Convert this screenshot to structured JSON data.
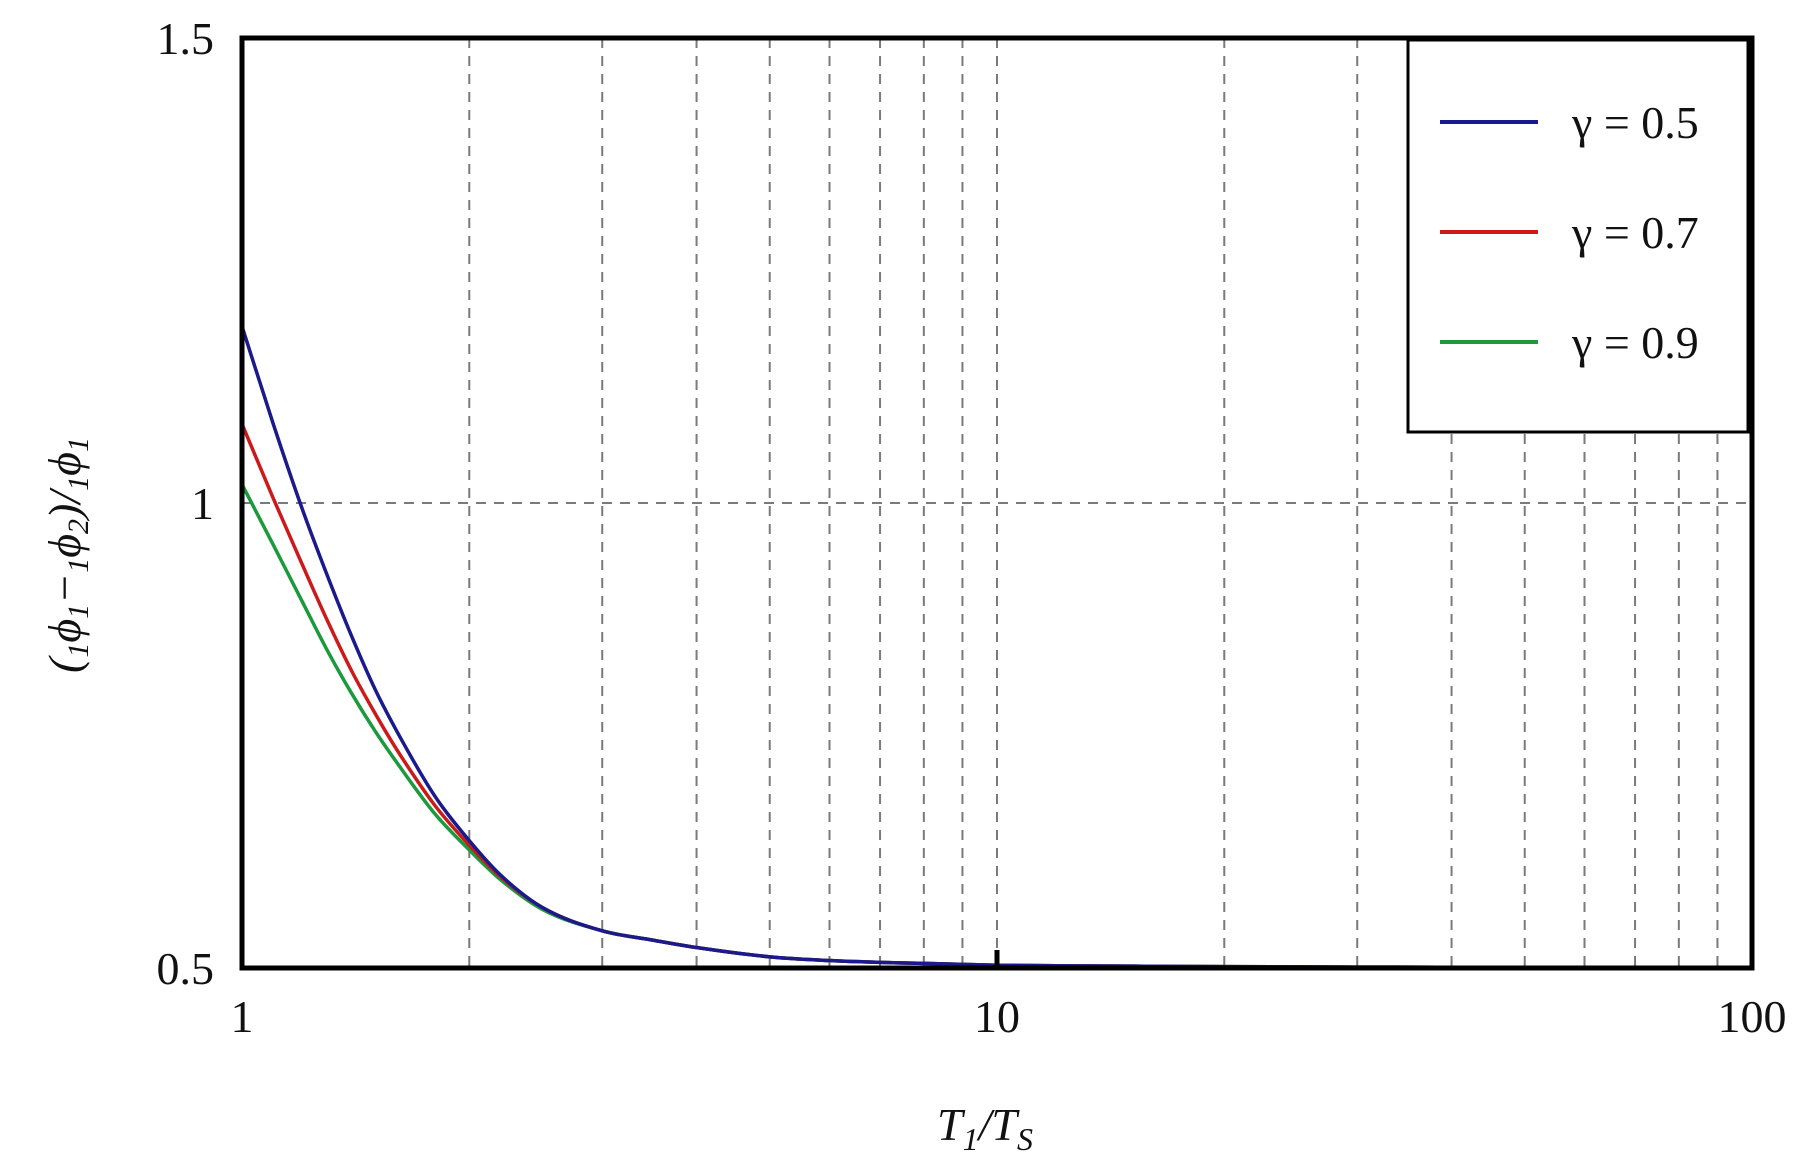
{
  "chart_data": {
    "type": "line",
    "title": "",
    "xlabel": {
      "main": "T",
      "sub1": "1",
      "slash": "/",
      "main2": "T",
      "sub2": "S"
    },
    "ylabel": {
      "p1": "(",
      "s1": "1",
      "phi1": "ϕ",
      "s1b": "1",
      "minus": "−",
      "s2": "1",
      "phi2": "ϕ",
      "s2b": "2",
      "p2": ")/",
      "s3": "1",
      "phi3": "ϕ",
      "s3b": "1"
    },
    "x_scale": "log",
    "xlim": [
      1,
      100
    ],
    "ylim": [
      0.5,
      1.5
    ],
    "x_ticks": [
      1,
      10,
      100
    ],
    "x_tick_labels": [
      "1",
      "10",
      "100"
    ],
    "y_ticks": [
      0.5,
      1,
      1.5
    ],
    "y_tick_labels": [
      "0.5",
      "1",
      "1.5"
    ],
    "grid": true,
    "legend_position": "top-right",
    "series": [
      {
        "name": "γ = 0.5",
        "color": "#1a1a8c",
        "x": [
          1,
          1.1,
          1.2,
          1.3,
          1.4,
          1.5,
          1.6,
          1.8,
          2,
          2.2,
          2.5,
          3,
          3.5,
          4,
          5,
          6,
          7,
          8,
          10,
          15,
          20,
          30,
          50,
          70,
          100
        ],
        "y": [
          1.19,
          1.085,
          0.995,
          0.92,
          0.855,
          0.8,
          0.756,
          0.685,
          0.637,
          0.6,
          0.565,
          0.54,
          0.53,
          0.522,
          0.512,
          0.508,
          0.506,
          0.505,
          0.503,
          0.502,
          0.5015,
          0.501,
          0.5005,
          0.5003,
          0.5002
        ]
      },
      {
        "name": "γ = 0.7",
        "color": "#cc1a1a",
        "x": [
          1,
          1.1,
          1.2,
          1.3,
          1.4,
          1.5,
          1.6,
          1.8,
          2,
          2.2,
          2.5,
          3,
          3.5,
          4,
          5,
          6,
          7,
          8,
          10,
          15,
          20,
          30,
          50,
          70,
          100
        ],
        "y": [
          1.085,
          1.005,
          0.935,
          0.872,
          0.818,
          0.774,
          0.736,
          0.675,
          0.632,
          0.598,
          0.565,
          0.54,
          0.53,
          0.522,
          0.512,
          0.508,
          0.506,
          0.505,
          0.503,
          0.502,
          0.5015,
          0.501,
          0.5005,
          0.5003,
          0.5002
        ]
      },
      {
        "name": "γ = 0.9",
        "color": "#1a9a3c",
        "x": [
          1,
          1.1,
          1.2,
          1.3,
          1.4,
          1.5,
          1.6,
          1.8,
          2,
          2.2,
          2.5,
          3,
          3.5,
          4,
          5,
          6,
          7,
          8,
          10,
          15,
          20,
          30,
          50,
          70,
          100
        ],
        "y": [
          1.02,
          0.955,
          0.895,
          0.84,
          0.794,
          0.755,
          0.722,
          0.666,
          0.627,
          0.595,
          0.563,
          0.54,
          0.53,
          0.522,
          0.512,
          0.508,
          0.506,
          0.505,
          0.503,
          0.502,
          0.5015,
          0.501,
          0.5005,
          0.5003,
          0.5002
        ]
      }
    ],
    "draw_order": [
      2,
      1,
      0
    ]
  }
}
